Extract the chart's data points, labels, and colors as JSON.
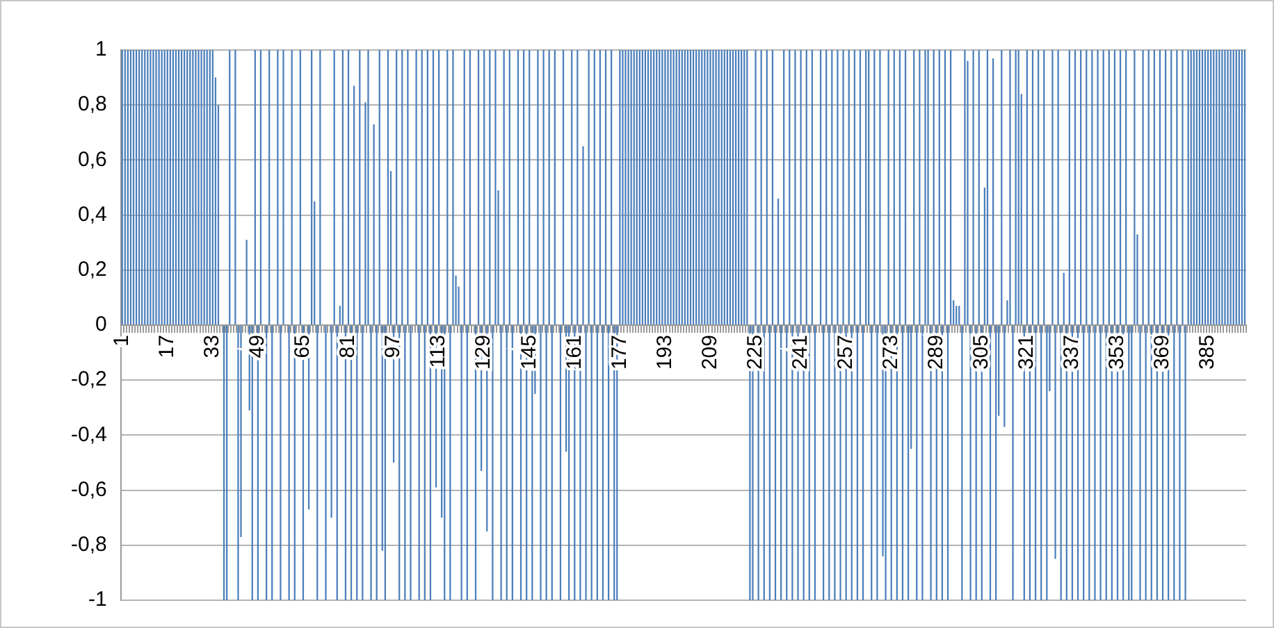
{
  "chart_data": {
    "type": "bar",
    "categories": [
      "1",
      null,
      null,
      null,
      null,
      null,
      null,
      null,
      null,
      null,
      null,
      null,
      null,
      null,
      null,
      null,
      "17",
      null,
      null,
      null,
      null,
      null,
      null,
      null,
      null,
      null,
      null,
      null,
      null,
      null,
      null,
      null,
      "33",
      null,
      null,
      null,
      null,
      null,
      null,
      null,
      null,
      null,
      null,
      null,
      null,
      null,
      null,
      null,
      "49",
      null,
      null,
      null,
      null,
      null,
      null,
      null,
      null,
      null,
      null,
      null,
      null,
      null,
      null,
      null,
      "65",
      null,
      null,
      null,
      null,
      null,
      null,
      null,
      null,
      null,
      null,
      null,
      null,
      null,
      null,
      null,
      "81",
      null,
      null,
      null,
      null,
      null,
      null,
      null,
      null,
      null,
      null,
      null,
      null,
      null,
      null,
      null,
      "97",
      null,
      null,
      null,
      null,
      null,
      null,
      null,
      null,
      null,
      null,
      null,
      null,
      null,
      null,
      null,
      "113",
      null,
      null,
      null,
      null,
      null,
      null,
      null,
      null,
      null,
      null,
      null,
      null,
      null,
      null,
      null,
      "129",
      null,
      null,
      null,
      null,
      null,
      null,
      null,
      null,
      null,
      null,
      null,
      null,
      null,
      null,
      null,
      "145",
      null,
      null,
      null,
      null,
      null,
      null,
      null,
      null,
      null,
      null,
      null,
      null,
      null,
      null,
      null,
      "161",
      null,
      null,
      null,
      null,
      null,
      null,
      null,
      null,
      null,
      null,
      null,
      null,
      null,
      null,
      null,
      "177",
      null,
      null,
      null,
      null,
      null,
      null,
      null,
      null,
      null,
      null,
      null,
      null,
      null,
      null,
      null,
      "193",
      null,
      null,
      null,
      null,
      null,
      null,
      null,
      null,
      null,
      null,
      null,
      null,
      null,
      null,
      null,
      "209",
      null,
      null,
      null,
      null,
      null,
      null,
      null,
      null,
      null,
      null,
      null,
      null,
      null,
      null,
      null,
      "225",
      null,
      null,
      null,
      null,
      null,
      null,
      null,
      null,
      null,
      null,
      null,
      null,
      null,
      null,
      null,
      "241",
      null,
      null,
      null,
      null,
      null,
      null,
      null,
      null,
      null,
      null,
      null,
      null,
      null,
      null,
      null,
      "257",
      null,
      null,
      null,
      null,
      null,
      null,
      null,
      null,
      null,
      null,
      null,
      null,
      null,
      null,
      null,
      "273",
      null,
      null,
      null,
      null,
      null,
      null,
      null,
      null,
      null,
      null,
      null,
      null,
      null,
      null,
      null,
      "289",
      null,
      null,
      null,
      null,
      null,
      null,
      null,
      null,
      null,
      null,
      null,
      null,
      null,
      null,
      null,
      "305",
      null,
      null,
      null,
      null,
      null,
      null,
      null,
      null,
      null,
      null,
      null,
      null,
      null,
      null,
      null,
      "321",
      null,
      null,
      null,
      null,
      null,
      null,
      null,
      null,
      null,
      null,
      null,
      null,
      null,
      null,
      null,
      "337",
      null,
      null,
      null,
      null,
      null,
      null,
      null,
      null,
      null,
      null,
      null,
      null,
      null,
      null,
      null,
      "353",
      null,
      null,
      null,
      null,
      null,
      null,
      null,
      null,
      null,
      null,
      null,
      null,
      null,
      null,
      null,
      "369",
      null,
      null,
      null,
      null,
      null,
      null,
      null,
      null,
      null,
      null,
      null,
      null,
      null,
      null,
      null,
      "385",
      null,
      null,
      null,
      null,
      null,
      null,
      null,
      null,
      null,
      null,
      null,
      null,
      null
    ],
    "values": [
      1,
      1,
      1,
      1,
      1,
      1,
      1,
      1,
      1,
      1,
      1,
      1,
      1,
      1,
      1,
      1,
      1,
      1,
      1,
      1,
      1,
      1,
      1,
      1,
      1,
      1,
      1,
      1,
      1,
      1,
      1,
      1,
      1,
      0.9,
      0.8,
      0,
      -1,
      -1,
      1,
      0,
      1,
      -1,
      -0.77,
      0,
      0.31,
      -0.31,
      -1,
      1,
      -1,
      1,
      0,
      -1,
      1,
      -1,
      0,
      1,
      -1,
      1,
      0,
      -1,
      1,
      -1,
      0,
      1,
      -1,
      0,
      -0.67,
      1,
      0.45,
      -1,
      1,
      0,
      -1,
      0,
      -0.7,
      1,
      -1,
      0.07,
      1,
      -1,
      1,
      -1,
      0.87,
      -1,
      1,
      -1,
      0.81,
      1,
      -1,
      0.73,
      -1,
      1,
      -0.82,
      -1,
      1,
      0.56,
      -0.5,
      1,
      -1,
      1,
      -1,
      1,
      -1,
      0,
      1,
      -1,
      1,
      -1,
      1,
      -1,
      1,
      -0.59,
      1,
      -0.7,
      -1,
      1,
      -1,
      1,
      0.18,
      0.14,
      -1,
      1,
      -1,
      1,
      0,
      -1,
      1,
      -0.53,
      1,
      -0.75,
      1,
      -1,
      1,
      0.49,
      -1,
      1,
      -1,
      1,
      -1,
      0,
      1,
      -1,
      1,
      -1,
      1,
      -1,
      -0.25,
      1,
      -1,
      1,
      -1,
      1,
      -1,
      1,
      0,
      -1,
      1,
      -0.46,
      -1,
      1,
      -1,
      1,
      -1,
      0.65,
      -1,
      1,
      -1,
      1,
      -1,
      1,
      -1,
      1,
      -1,
      1,
      -1,
      -1,
      1,
      1,
      1,
      1,
      1,
      1,
      1,
      1,
      1,
      1,
      1,
      1,
      1,
      1,
      1,
      1,
      1,
      1,
      1,
      1,
      1,
      1,
      1,
      1,
      1,
      1,
      1,
      1,
      1,
      1,
      1,
      1,
      1,
      1,
      1,
      1,
      1,
      1,
      1,
      1,
      1,
      1,
      1,
      1,
      1,
      1,
      -1,
      -1,
      1,
      -1,
      1,
      -1,
      1,
      -1,
      1,
      -1,
      0.46,
      -1,
      1,
      -1,
      1,
      -1,
      1,
      -1,
      1,
      -1,
      1,
      -1,
      1,
      -1,
      0,
      1,
      -1,
      1,
      -1,
      1,
      -1,
      1,
      -1,
      1,
      -1,
      1,
      -1,
      1,
      -1,
      1,
      -1,
      1,
      1,
      -1,
      1,
      -1,
      1,
      -0.84,
      -1,
      1,
      -1,
      1,
      -1,
      1,
      -1,
      1,
      -1,
      -0.45,
      1,
      -1,
      1,
      -1,
      1,
      1,
      -1,
      1,
      -1,
      1,
      -1,
      1,
      -1,
      1,
      0.09,
      0.07,
      0.07,
      -1,
      1,
      0.96,
      -1,
      1,
      -1,
      1,
      -1,
      0.5,
      1,
      -1,
      0.97,
      -1,
      -0.33,
      1,
      -0.37,
      0.09,
      1,
      -1,
      1,
      1,
      0.84,
      -1,
      1,
      -1,
      1,
      -1,
      1,
      -1,
      1,
      -1,
      -0.24,
      1,
      -0.85,
      1,
      -1,
      0.19,
      -1,
      1,
      -1,
      1,
      -1,
      1,
      -1,
      1,
      -1,
      1,
      -1,
      1,
      -1,
      1,
      -1,
      1,
      -1,
      1,
      -1,
      1,
      -1,
      1,
      -1,
      -1,
      1,
      0.33,
      -1,
      1,
      -1,
      1,
      -1,
      1,
      -1,
      1,
      -1,
      1,
      -1,
      1,
      -1,
      1,
      -1,
      1,
      -1,
      1,
      1,
      1,
      1,
      1,
      1,
      1,
      1,
      1,
      1,
      1,
      1,
      1,
      1,
      1,
      1,
      1,
      1,
      1,
      1,
      1
    ],
    "color": "#4a7ebb",
    "ylim": [
      -1,
      1
    ],
    "yticks": [
      {
        "value": -1,
        "label": "-1"
      },
      {
        "value": -0.8,
        "label": "-0,8"
      },
      {
        "value": -0.6,
        "label": "-0,6"
      },
      {
        "value": -0.4,
        "label": "-0,4"
      },
      {
        "value": -0.2,
        "label": "-0,2"
      },
      0,
      {
        "value": 0.2,
        "label": "0,2"
      },
      {
        "value": 0.4,
        "label": "0,4"
      },
      {
        "value": 0.6,
        "label": "0,6"
      },
      {
        "value": 0.8,
        "label": "0,8"
      },
      1
    ],
    "grid": "y"
  }
}
